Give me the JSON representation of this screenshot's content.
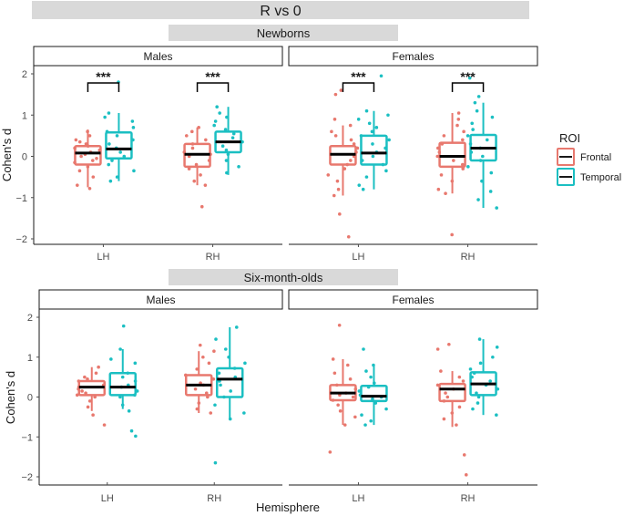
{
  "title": "R vs 0",
  "legend": {
    "title": "ROI",
    "items": [
      {
        "label": "Frontal",
        "color": "#E8786E"
      },
      {
        "label": "Temporal",
        "color": "#1BBFC2"
      }
    ]
  },
  "chart_data": {
    "type": "boxplot",
    "ylabel": "Cohen's d",
    "xlabel": "Hemisphere",
    "categories": [
      "LH",
      "RH"
    ],
    "yticks": [
      "2",
      "1",
      "0",
      "−1",
      "−2"
    ],
    "ytick_values": [
      2,
      1,
      0,
      -1,
      -2
    ],
    "groups": [
      {
        "name": "Newborns",
        "ylim": [
          -2.15,
          2.15
        ],
        "panels": [
          {
            "name": "Males",
            "significance": [
              "***",
              "***"
            ],
            "boxes": {
              "LH": {
                "Frontal": {
                  "q1": -0.2,
                  "median": 0.08,
                  "q3": 0.25,
                  "min": -0.75,
                  "max": 0.65,
                  "points": [
                    0.6,
                    0.5,
                    0.4,
                    0.35,
                    0.3,
                    0.25,
                    0.2,
                    0.15,
                    0.1,
                    0.05,
                    0.0,
                    -0.05,
                    -0.1,
                    -0.15,
                    -0.25,
                    -0.35,
                    -0.5,
                    -0.7,
                    -0.78
                  ]
                },
                "Temporal": {
                  "q1": -0.05,
                  "median": 0.18,
                  "q3": 0.58,
                  "min": -0.6,
                  "max": 1.05,
                  "points": [
                    1.8,
                    1.05,
                    0.95,
                    0.85,
                    0.7,
                    0.6,
                    0.5,
                    0.4,
                    0.3,
                    0.2,
                    0.1,
                    0.0,
                    -0.1,
                    -0.2,
                    -0.35,
                    -0.5,
                    -0.6
                  ]
                }
              },
              "RH": {
                "Frontal": {
                  "q1": -0.25,
                  "median": 0.05,
                  "q3": 0.3,
                  "min": -0.7,
                  "max": 0.7,
                  "points": [
                    0.7,
                    0.6,
                    0.5,
                    0.4,
                    0.3,
                    0.2,
                    0.1,
                    0.05,
                    0.0,
                    -0.1,
                    -0.2,
                    -0.3,
                    -0.45,
                    -0.6,
                    -0.7,
                    -1.22
                  ]
                },
                "Temporal": {
                  "q1": 0.1,
                  "median": 0.35,
                  "q3": 0.6,
                  "min": -0.45,
                  "max": 1.2,
                  "points": [
                    1.2,
                    1.05,
                    0.95,
                    0.85,
                    0.75,
                    0.65,
                    0.55,
                    0.45,
                    0.35,
                    0.25,
                    0.15,
                    0.05,
                    -0.1,
                    -0.25,
                    -0.4
                  ]
                }
              }
            }
          },
          {
            "name": "Females",
            "significance": [
              "***",
              "***"
            ],
            "boxes": {
              "LH": {
                "Frontal": {
                  "q1": -0.2,
                  "median": 0.05,
                  "q3": 0.25,
                  "min": -0.95,
                  "max": 0.75,
                  "points": [
                    1.6,
                    1.5,
                    0.9,
                    0.75,
                    0.6,
                    0.5,
                    0.4,
                    0.3,
                    0.2,
                    0.1,
                    0.0,
                    -0.1,
                    -0.2,
                    -0.3,
                    -0.45,
                    -0.6,
                    -0.8,
                    -0.95,
                    -1.4,
                    -1.95
                  ]
                },
                "Temporal": {
                  "q1": -0.2,
                  "median": 0.08,
                  "q3": 0.5,
                  "min": -0.8,
                  "max": 1.1,
                  "points": [
                    1.95,
                    1.1,
                    1.0,
                    0.9,
                    0.8,
                    0.7,
                    0.6,
                    0.5,
                    0.4,
                    0.3,
                    0.2,
                    0.1,
                    0.0,
                    -0.1,
                    -0.2,
                    -0.35,
                    -0.5,
                    -0.7,
                    -0.8
                  ]
                }
              },
              "RH": {
                "Frontal": {
                  "q1": -0.25,
                  "median": 0.0,
                  "q3": 0.33,
                  "min": -0.9,
                  "max": 1.05,
                  "points": [
                    1.05,
                    0.9,
                    0.75,
                    0.6,
                    0.5,
                    0.4,
                    0.3,
                    0.2,
                    0.1,
                    0.0,
                    -0.1,
                    -0.2,
                    -0.3,
                    -0.45,
                    -0.6,
                    -0.8,
                    -0.9,
                    -1.9
                  ]
                },
                "Temporal": {
                  "q1": -0.1,
                  "median": 0.2,
                  "q3": 0.52,
                  "min": -1.25,
                  "max": 1.3,
                  "points": [
                    1.9,
                    1.45,
                    1.3,
                    1.1,
                    0.95,
                    0.8,
                    0.65,
                    0.5,
                    0.4,
                    0.3,
                    0.2,
                    0.1,
                    0.0,
                    -0.1,
                    -0.25,
                    -0.4,
                    -0.6,
                    -0.85,
                    -1.05,
                    -1.25
                  ]
                }
              }
            }
          }
        ]
      },
      {
        "name": "Six-month-olds",
        "ylim": [
          -2.15,
          2.15
        ],
        "panels": [
          {
            "name": "Males",
            "significance": [
              "",
              ""
            ],
            "boxes": {
              "LH": {
                "Frontal": {
                  "q1": 0.05,
                  "median": 0.25,
                  "q3": 0.4,
                  "min": -0.35,
                  "max": 0.75,
                  "points": [
                    0.75,
                    0.6,
                    0.5,
                    0.45,
                    0.4,
                    0.3,
                    0.25,
                    0.2,
                    0.15,
                    0.1,
                    0.05,
                    0.0,
                    -0.1,
                    -0.25,
                    -0.45,
                    -0.7
                  ]
                },
                "Temporal": {
                  "q1": 0.05,
                  "median": 0.25,
                  "q3": 0.6,
                  "min": -0.3,
                  "max": 1.2,
                  "points": [
                    1.78,
                    1.2,
                    0.95,
                    0.85,
                    0.6,
                    0.5,
                    0.4,
                    0.3,
                    0.25,
                    0.15,
                    0.05,
                    0.0,
                    -0.2,
                    -0.35,
                    -0.85,
                    -0.98
                  ]
                }
              },
              "RH": {
                "Frontal": {
                  "q1": 0.05,
                  "median": 0.3,
                  "q3": 0.55,
                  "min": -0.4,
                  "max": 1.15,
                  "points": [
                    1.3,
                    1.15,
                    1.0,
                    0.85,
                    0.7,
                    0.55,
                    0.45,
                    0.35,
                    0.3,
                    0.2,
                    0.1,
                    0.0,
                    -0.15,
                    -0.3,
                    -0.4
                  ]
                },
                "Temporal": {
                  "q1": 0.0,
                  "median": 0.45,
                  "q3": 0.72,
                  "min": -0.55,
                  "max": 1.75,
                  "points": [
                    1.75,
                    1.45,
                    1.2,
                    1.0,
                    0.85,
                    0.72,
                    0.6,
                    0.5,
                    0.4,
                    0.3,
                    0.15,
                    0.0,
                    -0.2,
                    -0.4,
                    -0.55,
                    -1.65
                  ]
                }
              }
            }
          },
          {
            "name": "Females",
            "significance": [
              "",
              ""
            ],
            "boxes": {
              "LH": {
                "Frontal": {
                  "q1": -0.08,
                  "median": 0.1,
                  "q3": 0.3,
                  "min": -0.7,
                  "max": 0.95,
                  "points": [
                    1.8,
                    0.95,
                    0.8,
                    0.6,
                    0.45,
                    0.3,
                    0.2,
                    0.1,
                    0.05,
                    0.0,
                    -0.08,
                    -0.2,
                    -0.35,
                    -0.5,
                    -0.7,
                    -1.38
                  ]
                },
                "Temporal": {
                  "q1": -0.1,
                  "median": 0.02,
                  "q3": 0.28,
                  "min": -0.7,
                  "max": 0.8,
                  "points": [
                    1.2,
                    0.8,
                    0.65,
                    0.5,
                    0.35,
                    0.25,
                    0.15,
                    0.05,
                    0.0,
                    -0.05,
                    -0.15,
                    -0.3,
                    -0.45,
                    -0.6,
                    -0.7
                  ]
                }
              },
              "RH": {
                "Frontal": {
                  "q1": -0.1,
                  "median": 0.2,
                  "q3": 0.33,
                  "min": -0.75,
                  "max": 0.65,
                  "points": [
                    1.32,
                    1.2,
                    0.65,
                    0.5,
                    0.4,
                    0.3,
                    0.2,
                    0.1,
                    0.0,
                    -0.1,
                    -0.25,
                    -0.4,
                    -0.55,
                    -0.7,
                    -1.45,
                    -1.95
                  ]
                },
                "Temporal": {
                  "q1": 0.05,
                  "median": 0.33,
                  "q3": 0.62,
                  "min": -0.45,
                  "max": 1.45,
                  "points": [
                    1.45,
                    1.25,
                    1.0,
                    0.85,
                    0.7,
                    0.6,
                    0.5,
                    0.4,
                    0.3,
                    0.2,
                    0.1,
                    0.0,
                    -0.15,
                    -0.3,
                    -0.45
                  ]
                }
              }
            }
          }
        ]
      }
    ]
  }
}
